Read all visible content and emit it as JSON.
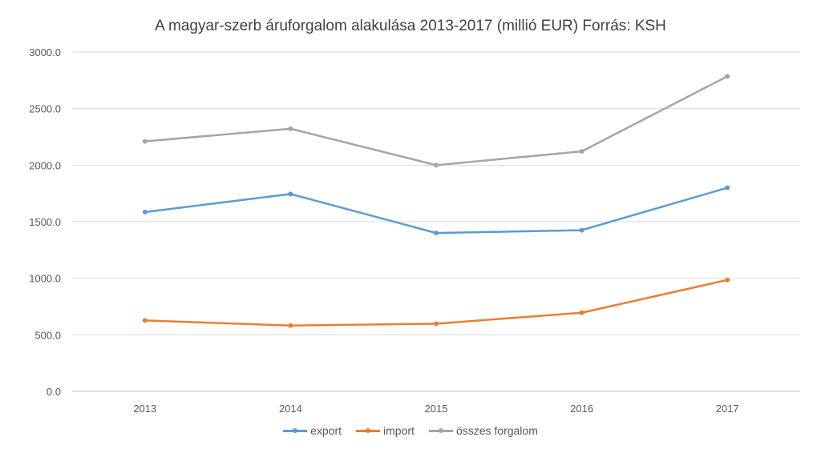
{
  "chart_data": {
    "type": "line",
    "title": "A magyar-szerb áruforgalom alakulása 2013-2017 (millió EUR) Forrás: KSH",
    "xlabel": "",
    "ylabel": "",
    "categories": [
      "2013",
      "2014",
      "2015",
      "2016",
      "2017"
    ],
    "ylim": [
      0,
      3000
    ],
    "yticks": [
      "0.0",
      "500.0",
      "1000.0",
      "1500.0",
      "2000.0",
      "2500.0",
      "3000.0"
    ],
    "grid": true,
    "legend_position": "bottom",
    "series": [
      {
        "name": "export",
        "color": "#5B9BD5",
        "values": [
          1585,
          1745,
          1400,
          1425,
          1800
        ]
      },
      {
        "name": "import",
        "color": "#ED7D31",
        "values": [
          627,
          582,
          598,
          695,
          985
        ]
      },
      {
        "name": "összes forgalom",
        "color": "#A5A5A5",
        "values": [
          2210,
          2322,
          2000,
          2122,
          2785
        ]
      }
    ]
  }
}
